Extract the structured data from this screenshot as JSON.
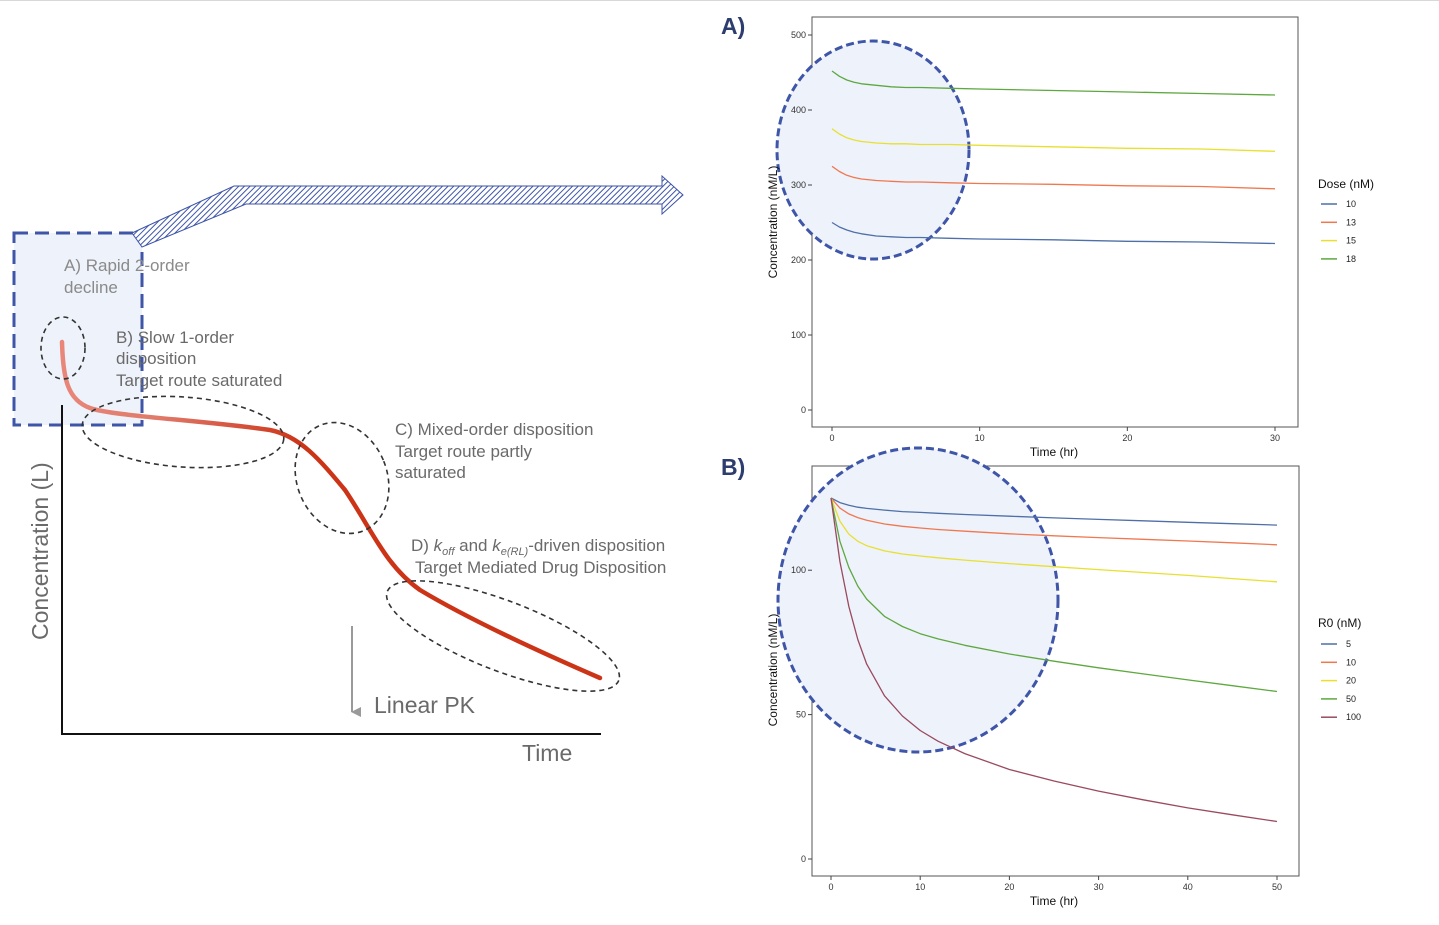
{
  "schematic": {
    "xlabel": "Time",
    "ylabel": "Concentration (L)",
    "linear_pk_label": "Linear PK",
    "phase_a": {
      "line1": "A) Rapid 2-order",
      "line2": "decline"
    },
    "phase_b": {
      "line1": "B) Slow 1-order",
      "line2": "disposition",
      "line3": "Target route saturated"
    },
    "phase_c": {
      "line1": "C) Mixed-order disposition",
      "line2": "Target route partly",
      "line3": "saturated"
    },
    "phase_d": {
      "prefix": "D) ",
      "k1": "k",
      "k1_sub": "off",
      "mid": " and ",
      "k2": "k",
      "k2_sub": "e(RL)",
      "suffix": "-driven disposition",
      "line2": "Target Mediated Drug Disposition"
    },
    "colors": {
      "curve_start": "#e8877a",
      "curve_end": "#cc3418",
      "highlight_border": "#3e55a8",
      "highlight_fill": "#eef2fb"
    }
  },
  "chart_data": [
    {
      "type": "line",
      "panel_label": "A)",
      "xlabel": "Time (hr)",
      "ylabel": "Concentration (nM/L)",
      "xlim": [
        0,
        30
      ],
      "ylim": [
        0,
        500
      ],
      "x_ticks": [
        0,
        10,
        20,
        30
      ],
      "y_ticks": [
        0,
        100,
        200,
        300,
        400,
        500
      ],
      "grid": false,
      "legend_title": "Dose (nM)",
      "legend_position": "right",
      "x": [
        0,
        0.5,
        1,
        1.5,
        2,
        3,
        4,
        5,
        6,
        8,
        10,
        15,
        20,
        25,
        30
      ],
      "series": [
        {
          "name": "10",
          "color": "#4e6fa8",
          "values": [
            250,
            244,
            240,
            237,
            235,
            232,
            231,
            230,
            230,
            229,
            228,
            227,
            225,
            224,
            222
          ]
        },
        {
          "name": "13",
          "color": "#f07850",
          "values": [
            325,
            318,
            313,
            310,
            308,
            306,
            305,
            304,
            304,
            303,
            302,
            301,
            299,
            298,
            295
          ]
        },
        {
          "name": "15",
          "color": "#e8e030",
          "values": [
            375,
            368,
            363,
            360,
            358,
            356,
            355,
            355,
            354,
            354,
            353,
            351,
            349,
            348,
            345
          ]
        },
        {
          "name": "18",
          "color": "#5ea840",
          "values": [
            452,
            445,
            440,
            437,
            435,
            433,
            431,
            430,
            430,
            429,
            428,
            426,
            424,
            422,
            420
          ]
        }
      ]
    },
    {
      "type": "line",
      "panel_label": "B)",
      "xlabel": "Time (hr)",
      "ylabel": "Concentration (nM/L)",
      "xlim": [
        0,
        50
      ],
      "ylim": [
        0,
        125
      ],
      "x_ticks": [
        0,
        10,
        20,
        30,
        40,
        50
      ],
      "y_ticks": [
        0,
        50,
        100
      ],
      "grid": false,
      "legend_title": "R0 (nM)",
      "legend_position": "right",
      "x": [
        0,
        1,
        2,
        3,
        4,
        6,
        8,
        10,
        12,
        15,
        20,
        25,
        30,
        35,
        40,
        45,
        50
      ],
      "series": [
        {
          "name": "5",
          "color": "#4e6fa8",
          "values": [
            125,
            123.4,
            122.5,
            121.8,
            121.4,
            120.8,
            120.3,
            120,
            119.7,
            119.3,
            118.7,
            118.1,
            117.6,
            117.1,
            116.6,
            116.1,
            115.6
          ]
        },
        {
          "name": "10",
          "color": "#f07850",
          "values": [
            125,
            121.5,
            119.5,
            118.2,
            117.3,
            116,
            115.2,
            114.6,
            114.1,
            113.5,
            112.6,
            111.9,
            111.3,
            110.7,
            110.1,
            109.5,
            108.8
          ]
        },
        {
          "name": "20",
          "color": "#e8e030",
          "values": [
            125,
            117,
            112.5,
            110,
            108.5,
            106.7,
            105.6,
            104.9,
            104.3,
            103.5,
            102.3,
            101.2,
            100.2,
            99.2,
            98.2,
            97.1,
            96
          ]
        },
        {
          "name": "50",
          "color": "#5ea840",
          "values": [
            125,
            110,
            101,
            94.5,
            90,
            84,
            80.5,
            78,
            76.2,
            74,
            71,
            68.5,
            66.2,
            64.1,
            62,
            60,
            58
          ]
        },
        {
          "name": "100",
          "color": "#9a4a5e",
          "values": [
            125,
            103,
            87.5,
            76,
            67.5,
            56.5,
            49.5,
            44.5,
            40.8,
            36.5,
            31,
            27,
            23.5,
            20.5,
            17.7,
            15.3,
            13
          ]
        }
      ]
    }
  ]
}
